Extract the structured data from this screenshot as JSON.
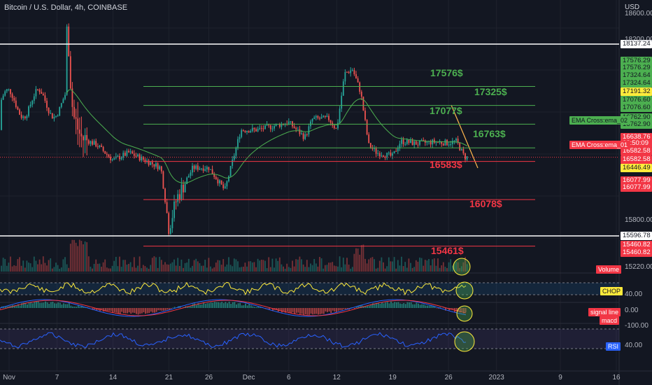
{
  "header": {
    "title": "Bitcoin / U.S. Dollar, 4h, COINBASE",
    "currency": "USD"
  },
  "price_scale": {
    "ticks": [
      "18600.00",
      "18200.00",
      "15800.00",
      "15220.00"
    ],
    "tags": [
      {
        "text": "18137.24",
        "style": "white"
      },
      {
        "text": "17576.29",
        "style": "green"
      },
      {
        "text": "17576.29",
        "style": "green"
      },
      {
        "text": "17324.64",
        "style": "green"
      },
      {
        "text": "17324.64",
        "style": "green"
      },
      {
        "text": "17191.32",
        "style": "yellow"
      },
      {
        "text": "17076.60",
        "style": "green"
      },
      {
        "text": "17076.60",
        "style": "green"
      },
      {
        "text": "16762.90",
        "style": "green"
      },
      {
        "text": "16762.90",
        "style": "green"
      },
      {
        "text": "16638.76",
        "style": "red"
      },
      {
        "text": "02:50:09",
        "style": "red"
      },
      {
        "text": "16582.58",
        "style": "red"
      },
      {
        "text": "16582.58",
        "style": "red"
      },
      {
        "text": "16446.49",
        "style": "yellow"
      },
      {
        "text": "16077.99",
        "style": "red"
      },
      {
        "text": "16077.99",
        "style": "red"
      },
      {
        "text": "15596.78",
        "style": "white"
      },
      {
        "text": "15460.82",
        "style": "red"
      },
      {
        "text": "15460.82",
        "style": "red"
      }
    ]
  },
  "indicators": {
    "ema2": "EMA Cross:ema_02",
    "ema1": "EMA Cross:ema_01",
    "volume": "Volume",
    "chop": "CHOP",
    "chop_value": "40.00",
    "signal": "signal line",
    "macd": "macd",
    "macd_zero": "0.00",
    "macd_neg": "-100.00",
    "rsi": "RSI",
    "rsi_value": "40.00"
  },
  "levels": {
    "g1": "17576$",
    "g2": "17325$",
    "g3": "17077$",
    "g4": "16763$",
    "r1": "16583$",
    "r2": "16078$",
    "r3": "15461$"
  },
  "x_axis": [
    "Nov",
    "7",
    "14",
    "21",
    "26",
    "Dec",
    "6",
    "12",
    "19",
    "26",
    "2023",
    "9",
    "16"
  ],
  "chart_data": {
    "type": "candlestick",
    "title": "Bitcoin / U.S. Dollar, 4h, COINBASE",
    "ylabel": "USD",
    "ylim": [
      15200,
      18700
    ],
    "x_range": [
      "2022-11-01",
      "2023-01-16"
    ],
    "horizontal_levels": [
      {
        "price": 18137.24,
        "color": "#ffffff"
      },
      {
        "price": 17576.29,
        "color": "#4caf50",
        "label": "17576$"
      },
      {
        "price": 17324.64,
        "color": "#4caf50",
        "label": "17325$"
      },
      {
        "price": 17076.6,
        "color": "#4caf50",
        "label": "17077$"
      },
      {
        "price": 16762.9,
        "color": "#4caf50",
        "label": "16763$"
      },
      {
        "price": 16582.58,
        "color": "#f23645",
        "label": "16583$"
      },
      {
        "price": 16077.99,
        "color": "#f23645",
        "label": "16078$"
      },
      {
        "price": 15596.78,
        "color": "#ffffff"
      },
      {
        "price": 15460.82,
        "color": "#f23645",
        "label": "15461$"
      }
    ],
    "price_path": [
      {
        "date": "2022-11-08",
        "price": 18700
      },
      {
        "date": "2022-11-09",
        "price": 17200
      },
      {
        "date": "2022-11-10",
        "price": 16900
      },
      {
        "date": "2022-11-12",
        "price": 16800
      },
      {
        "date": "2022-11-14",
        "price": 16600
      },
      {
        "date": "2022-11-16",
        "price": 16700
      },
      {
        "date": "2022-11-18",
        "price": 16600
      },
      {
        "date": "2022-11-20",
        "price": 16500
      },
      {
        "date": "2022-11-21",
        "price": 15700
      },
      {
        "date": "2022-11-22",
        "price": 16100
      },
      {
        "date": "2022-11-24",
        "price": 16500
      },
      {
        "date": "2022-11-26",
        "price": 16500
      },
      {
        "date": "2022-11-28",
        "price": 16200
      },
      {
        "date": "2022-11-30",
        "price": 17000
      },
      {
        "date": "2022-12-02",
        "price": 17000
      },
      {
        "date": "2022-12-04",
        "price": 17050
      },
      {
        "date": "2022-12-06",
        "price": 17100
      },
      {
        "date": "2022-12-08",
        "price": 16900
      },
      {
        "date": "2022-12-09",
        "price": 17150
      },
      {
        "date": "2022-12-11",
        "price": 17150
      },
      {
        "date": "2022-12-12",
        "price": 17000
      },
      {
        "date": "2022-12-13",
        "price": 17750
      },
      {
        "date": "2022-12-14",
        "price": 17800
      },
      {
        "date": "2022-12-15",
        "price": 17500
      },
      {
        "date": "2022-12-16",
        "price": 16800
      },
      {
        "date": "2022-12-17",
        "price": 16700
      },
      {
        "date": "2022-12-19",
        "price": 16650
      },
      {
        "date": "2022-12-20",
        "price": 16850
      },
      {
        "date": "2022-12-22",
        "price": 16820
      },
      {
        "date": "2022-12-24",
        "price": 16840
      },
      {
        "date": "2022-12-26",
        "price": 16830
      },
      {
        "date": "2022-12-27",
        "price": 16850
      },
      {
        "date": "2022-12-28",
        "price": 16639
      }
    ]
  }
}
